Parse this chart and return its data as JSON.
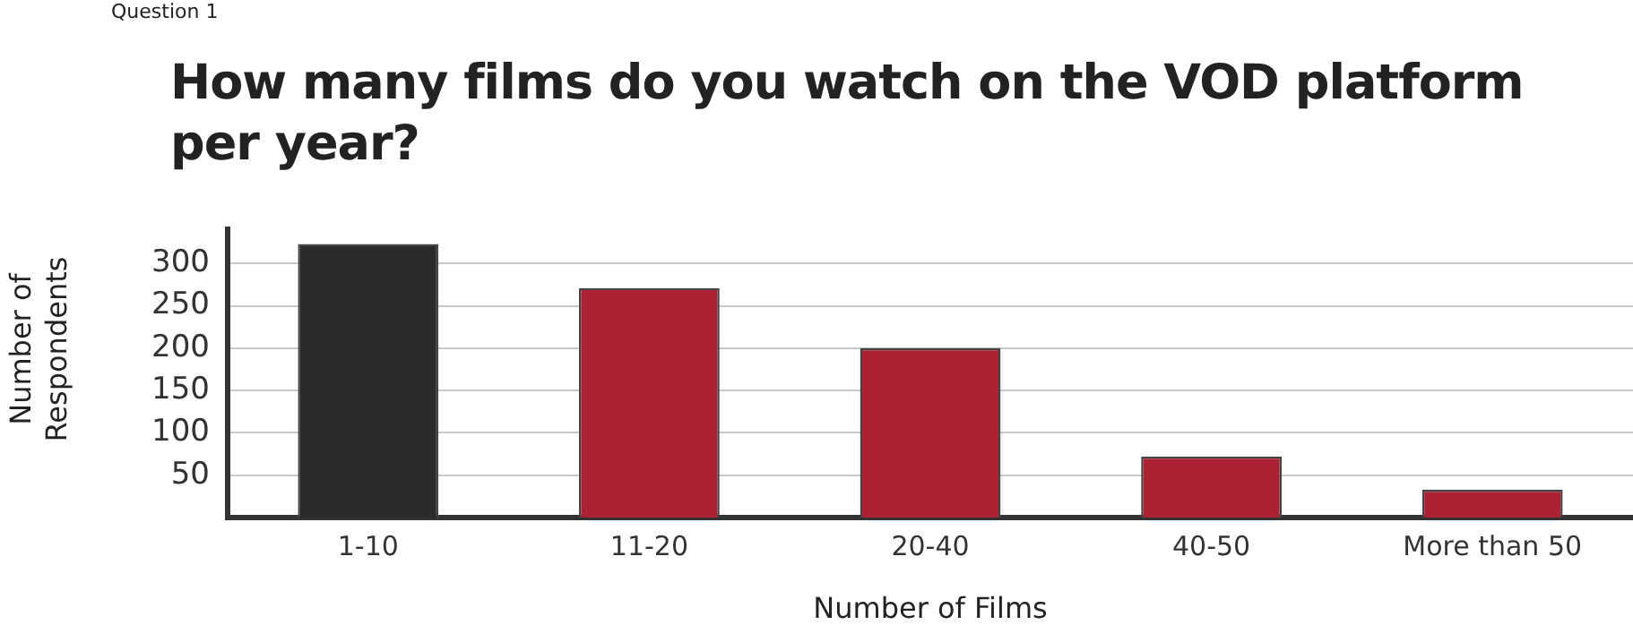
{
  "chart_data": {
    "type": "bar",
    "subtitle": "Question 1",
    "title": "How many films do you watch on the VOD platform per year?",
    "xlabel": "Number of Films",
    "ylabel": "Number of Respondents",
    "categories": [
      "1-10",
      "11-20",
      "20-40",
      "40-50",
      "More than 50"
    ],
    "values": [
      323,
      271,
      200,
      72,
      33
    ],
    "colors": [
      "#2b2b2b",
      "#ab2234",
      "#ab2234",
      "#ab2234",
      "#ab2234"
    ],
    "ylim": [
      0,
      340
    ],
    "yticks": [
      50,
      100,
      150,
      200,
      250,
      300
    ],
    "grid": "y",
    "legend": false
  }
}
